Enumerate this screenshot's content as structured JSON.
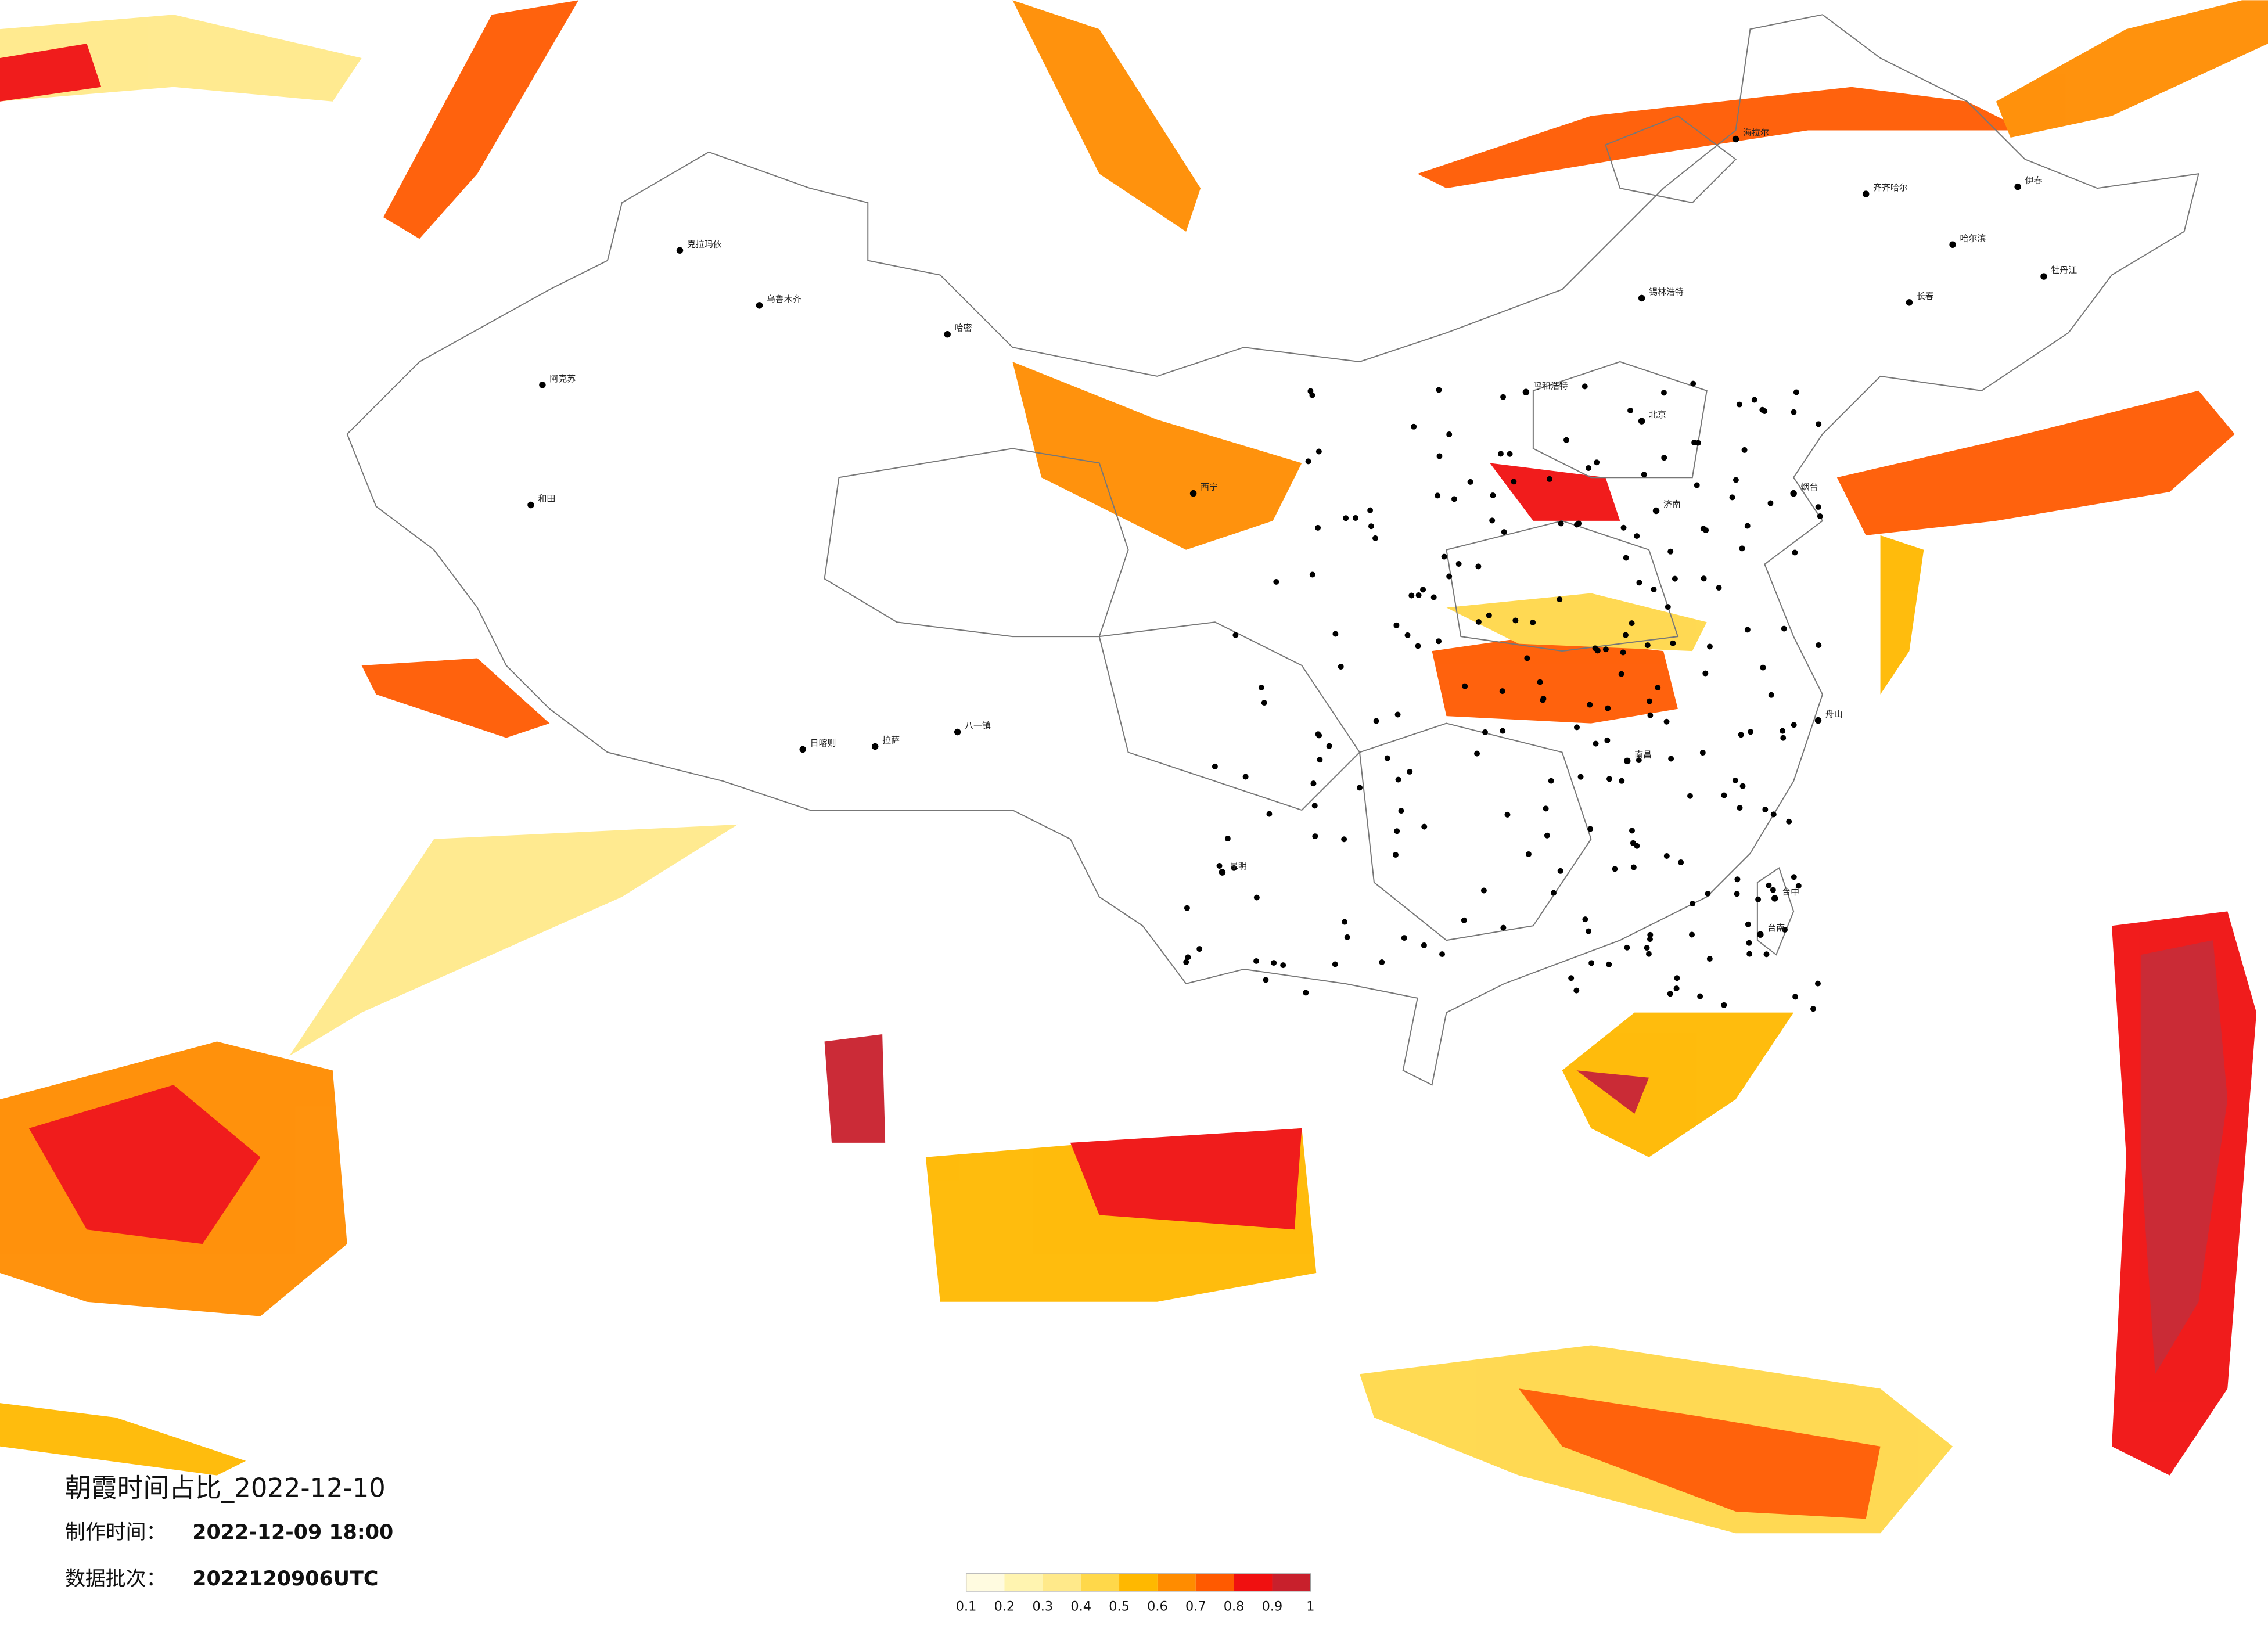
{
  "title": "朝霞时间占比_2022-12-10",
  "info": [
    {
      "label": "制作时间：",
      "value": "2022-12-09 18:00"
    },
    {
      "label": "数据批次：",
      "value": "2022120906UTC"
    }
  ],
  "colorbar": {
    "ticks": [
      0.1,
      0.2,
      0.3,
      0.4,
      0.5,
      0.6,
      0.7,
      0.8,
      0.9,
      1
    ],
    "colors": [
      "#fffbe0",
      "#fff4b0",
      "#ffe98a",
      "#ffd84a",
      "#ffb800",
      "#ff8c00",
      "#ff5a00",
      "#f01010",
      "#c8202c"
    ]
  },
  "cities": [
    "克拉玛依",
    "乌鲁木齐",
    "阿克苏",
    "和田",
    "哈密",
    "日喀则",
    "拉萨",
    "八一镇",
    "海拉尔",
    "齐齐哈尔",
    "哈尔滨",
    "长春",
    "锡林浩特",
    "呼和浩特",
    "北京",
    "济南",
    "西宁",
    "昆明",
    "台中",
    "台南",
    "舟山",
    "伊春",
    "牡丹江",
    "烟台",
    "南昌"
  ]
}
